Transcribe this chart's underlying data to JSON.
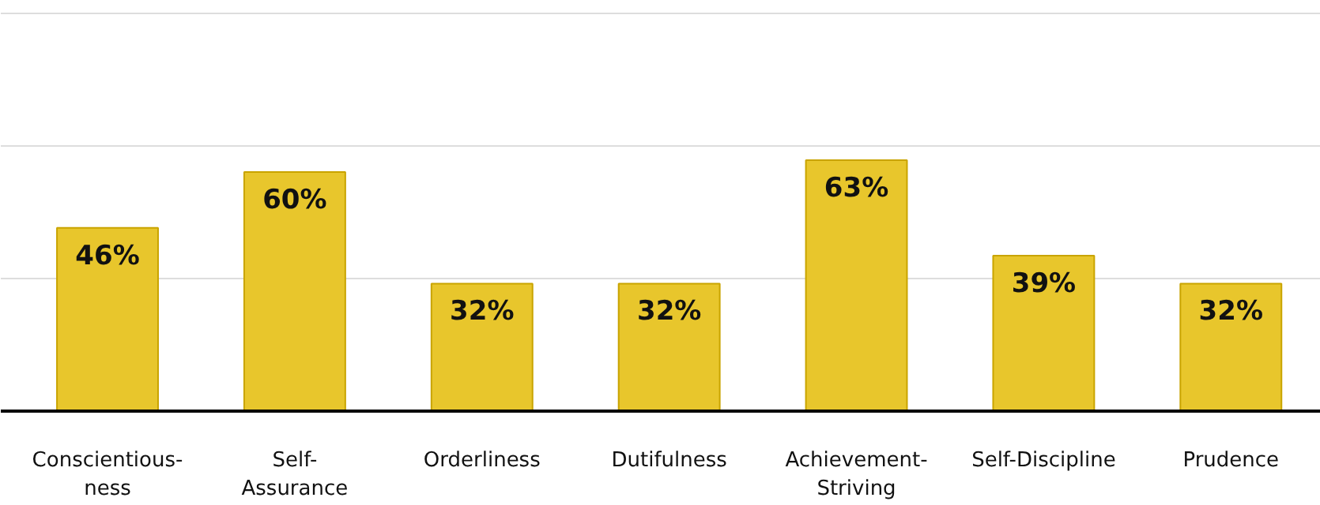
{
  "chart_data": {
    "type": "bar",
    "categories": [
      "Conscientious-\nness",
      "Self-\nAssurance",
      "Orderliness",
      "Dutifulness",
      "Achievement-\nStriving",
      "Self-Discipline",
      "Prudence"
    ],
    "values": [
      46,
      60,
      32,
      32,
      63,
      39,
      32
    ],
    "color": "#e8c62c",
    "ylim": [
      0,
      101
    ],
    "yticks": [
      {
        "value": 0,
        "label": null
      },
      {
        "value": 33.3,
        "label": null
      },
      {
        "value": 66.7,
        "label": null
      },
      {
        "value": 100,
        "label": null
      }
    ],
    "grid": "y",
    "data_labels": true,
    "value_labels": [
      "46%",
      "60%",
      "32%",
      "32%",
      "63%",
      "39%",
      "32%"
    ],
    "tick_labels": "x"
  }
}
